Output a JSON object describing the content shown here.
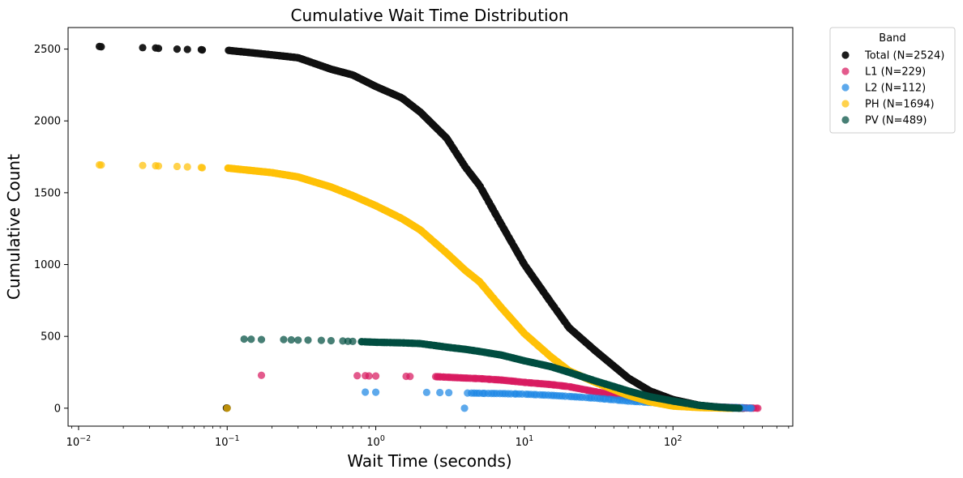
{
  "chart_data": {
    "type": "scatter",
    "title": "Cumulative Wait Time Distribution",
    "xlabel": "Wait Time (seconds)",
    "ylabel": "Cumulative Count",
    "xscale": "log",
    "xlim": [
      0.0085,
      640
    ],
    "ylim": [
      -125,
      2650
    ],
    "xticks": [
      0.01,
      0.1,
      1,
      10,
      100
    ],
    "xtick_labels": [
      {
        "base": "10",
        "exp": "−2"
      },
      {
        "base": "10",
        "exp": "−1"
      },
      {
        "base": "10",
        "exp": "0"
      },
      {
        "base": "10",
        "exp": "1"
      },
      {
        "base": "10",
        "exp": "2"
      }
    ],
    "yticks": [
      0,
      500,
      1000,
      1500,
      2000,
      2500
    ],
    "ytick_labels": [
      "0",
      "500",
      "1000",
      "1500",
      "2000",
      "2500"
    ],
    "grid": false,
    "legend": {
      "title": "Band",
      "placement": "outside top-right"
    },
    "series": [
      {
        "name": "Total (N=2524)",
        "color": "#111111",
        "n": 2524,
        "early_points": [
          [
            0.0138,
            2518
          ],
          [
            0.0142,
            2516
          ],
          [
            0.027,
            2510
          ],
          [
            0.033,
            2508
          ],
          [
            0.0345,
            2505
          ],
          [
            0.046,
            2500
          ],
          [
            0.054,
            2498
          ],
          [
            0.067,
            2496
          ],
          [
            0.068,
            2494
          ]
        ],
        "curve": [
          [
            0.1,
            2492
          ],
          [
            0.2,
            2460
          ],
          [
            0.3,
            2440
          ],
          [
            0.5,
            2360
          ],
          [
            0.7,
            2320
          ],
          [
            1,
            2240
          ],
          [
            1.5,
            2160
          ],
          [
            2,
            2060
          ],
          [
            3,
            1880
          ],
          [
            4,
            1680
          ],
          [
            5,
            1550
          ],
          [
            7,
            1280
          ],
          [
            10,
            1000
          ],
          [
            15,
            740
          ],
          [
            20,
            560
          ],
          [
            30,
            400
          ],
          [
            50,
            210
          ],
          [
            70,
            120
          ],
          [
            100,
            60
          ],
          [
            150,
            20
          ],
          [
            200,
            8
          ],
          [
            250,
            3
          ],
          [
            300,
            1
          ]
        ]
      },
      {
        "name": "L1 (N=229)",
        "color": "#d81b60",
        "n": 229,
        "early_points": [
          [
            0.17,
            229
          ],
          [
            0.75,
            226
          ],
          [
            0.85,
            226
          ],
          [
            0.9,
            225
          ],
          [
            1.0,
            224
          ],
          [
            1.6,
            222
          ],
          [
            1.7,
            221
          ]
        ],
        "curve": [
          [
            2.5,
            220
          ],
          [
            3,
            216
          ],
          [
            4,
            210
          ],
          [
            5,
            206
          ],
          [
            7,
            196
          ],
          [
            10,
            180
          ],
          [
            15,
            165
          ],
          [
            20,
            150
          ],
          [
            30,
            115
          ],
          [
            50,
            75
          ],
          [
            70,
            55
          ],
          [
            100,
            30
          ],
          [
            150,
            15
          ],
          [
            200,
            8
          ],
          [
            300,
            2
          ],
          [
            370,
            0
          ]
        ]
      },
      {
        "name": "L2 (N=112)",
        "color": "#1e88e5",
        "n": 112,
        "early_points": [
          [
            0.85,
            112
          ],
          [
            1.0,
            111
          ],
          [
            2.2,
            110
          ],
          [
            2.7,
            109
          ],
          [
            3.1,
            108
          ]
        ],
        "curve": [
          [
            4,
            106
          ],
          [
            5,
            104
          ],
          [
            7,
            102
          ],
          [
            10,
            98
          ],
          [
            15,
            90
          ],
          [
            20,
            82
          ],
          [
            30,
            70
          ],
          [
            50,
            50
          ],
          [
            70,
            40
          ],
          [
            100,
            30
          ],
          [
            150,
            15
          ],
          [
            200,
            8
          ],
          [
            300,
            3
          ],
          [
            340,
            0
          ]
        ]
      },
      {
        "name": "PH (N=1694)",
        "color": "#ffc107",
        "n": 1694,
        "early_points": [
          [
            0.0138,
            1694
          ],
          [
            0.0142,
            1693
          ],
          [
            0.027,
            1690
          ],
          [
            0.033,
            1688
          ],
          [
            0.0345,
            1686
          ],
          [
            0.046,
            1683
          ],
          [
            0.054,
            1680
          ],
          [
            0.067,
            1676
          ],
          [
            0.068,
            1674
          ]
        ],
        "curve": [
          [
            0.1,
            1672
          ],
          [
            0.2,
            1640
          ],
          [
            0.3,
            1610
          ],
          [
            0.5,
            1540
          ],
          [
            0.7,
            1480
          ],
          [
            1,
            1410
          ],
          [
            1.5,
            1320
          ],
          [
            2,
            1240
          ],
          [
            3,
            1080
          ],
          [
            4,
            960
          ],
          [
            5,
            880
          ],
          [
            7,
            700
          ],
          [
            10,
            520
          ],
          [
            15,
            360
          ],
          [
            20,
            260
          ],
          [
            30,
            180
          ],
          [
            50,
            90
          ],
          [
            70,
            45
          ],
          [
            100,
            15
          ],
          [
            150,
            5
          ],
          [
            200,
            2
          ],
          [
            250,
            0
          ]
        ]
      },
      {
        "name": "PV (N=489)",
        "color": "#004d40",
        "n": 489,
        "early_points": [
          [
            0.13,
            481
          ],
          [
            0.145,
            480
          ],
          [
            0.17,
            478
          ],
          [
            0.24,
            478
          ],
          [
            0.27,
            476
          ],
          [
            0.3,
            474
          ],
          [
            0.35,
            474
          ],
          [
            0.43,
            472
          ],
          [
            0.5,
            470
          ],
          [
            0.6,
            468
          ],
          [
            0.65,
            466
          ],
          [
            0.7,
            465
          ]
        ],
        "curve": [
          [
            0.8,
            463
          ],
          [
            1,
            459
          ],
          [
            1.5,
            455
          ],
          [
            2,
            450
          ],
          [
            3,
            425
          ],
          [
            4,
            410
          ],
          [
            5,
            395
          ],
          [
            7,
            370
          ],
          [
            10,
            330
          ],
          [
            15,
            290
          ],
          [
            20,
            250
          ],
          [
            30,
            190
          ],
          [
            50,
            120
          ],
          [
            70,
            80
          ],
          [
            100,
            50
          ],
          [
            150,
            20
          ],
          [
            200,
            8
          ],
          [
            250,
            2
          ],
          [
            280,
            0
          ]
        ]
      }
    ]
  }
}
